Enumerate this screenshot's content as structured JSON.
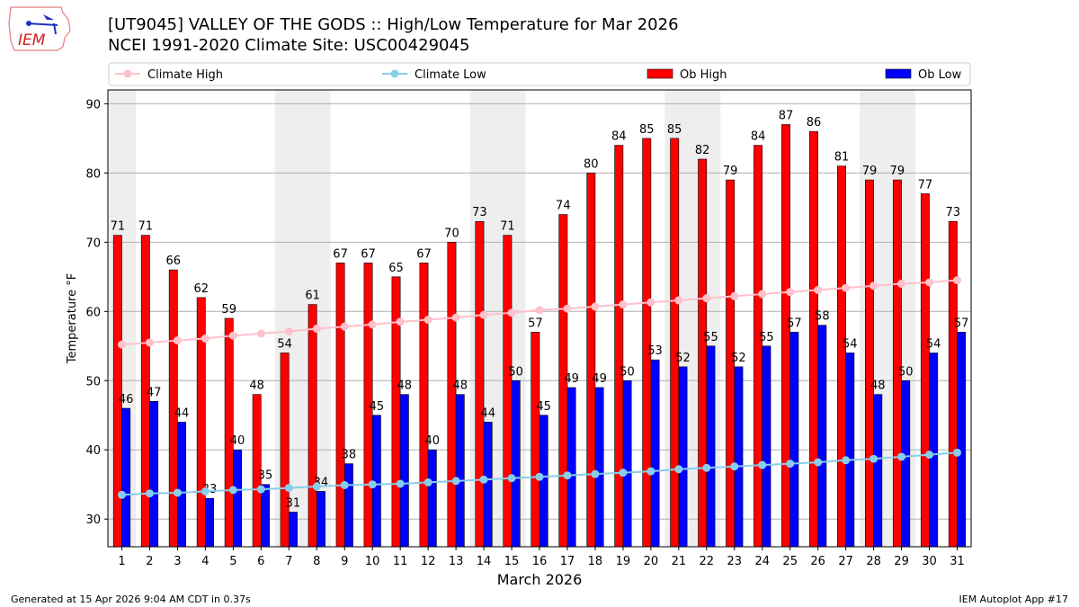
{
  "header": {
    "title_line1": "[UT9045] VALLEY OF THE GODS :: High/Low Temperature for Mar 2026",
    "title_line2": "NCEI 1991-2020 Climate Site: USC00429045",
    "logo_text": "IEM"
  },
  "footer": {
    "generated": "Generated at 15 Apr 2026 9:04 AM CDT in 0.37s",
    "app": "IEM Autoplot App #17"
  },
  "chart_data": {
    "type": "bar",
    "xlabel": "March 2026",
    "ylabel": "Temperature °F",
    "x": [
      1,
      2,
      3,
      4,
      5,
      6,
      7,
      8,
      9,
      10,
      11,
      12,
      13,
      14,
      15,
      16,
      17,
      18,
      19,
      20,
      21,
      22,
      23,
      24,
      25,
      26,
      27,
      28,
      29,
      30,
      31
    ],
    "xlim": [
      0.5,
      31.5
    ],
    "ylim": [
      26,
      92
    ],
    "yticks": [
      30,
      40,
      50,
      60,
      70,
      80,
      90
    ],
    "grid": "horizontal",
    "legend_placement": "top",
    "shaded_days": [
      1,
      7,
      8,
      14,
      15,
      21,
      22,
      28,
      29
    ],
    "series": [
      {
        "name": "Climate High",
        "type": "line",
        "color": "#ffc0cb",
        "values": [
          55.2,
          55.5,
          55.8,
          56.1,
          56.5,
          56.8,
          57.1,
          57.5,
          57.8,
          58.1,
          58.5,
          58.8,
          59.1,
          59.5,
          59.8,
          60.2,
          60.4,
          60.7,
          61.0,
          61.3,
          61.6,
          61.9,
          62.2,
          62.5,
          62.8,
          63.1,
          63.4,
          63.7,
          64.0,
          64.2,
          64.5
        ]
      },
      {
        "name": "Climate Low",
        "type": "line",
        "color": "#87ceeb",
        "values": [
          33.5,
          33.7,
          33.8,
          34.0,
          34.2,
          34.3,
          34.5,
          34.7,
          34.9,
          35.0,
          35.1,
          35.3,
          35.5,
          35.7,
          35.9,
          36.1,
          36.3,
          36.5,
          36.7,
          36.9,
          37.2,
          37.4,
          37.6,
          37.8,
          38.0,
          38.2,
          38.5,
          38.7,
          39.0,
          39.3,
          39.6
        ]
      },
      {
        "name": "Ob High",
        "type": "bar",
        "color": "#ff0000",
        "values": [
          71,
          71,
          66,
          62,
          59,
          48,
          54,
          61,
          67,
          67,
          65,
          67,
          70,
          73,
          71,
          57,
          74,
          80,
          84,
          85,
          85,
          82,
          79,
          84,
          87,
          86,
          81,
          79,
          79,
          77,
          73
        ]
      },
      {
        "name": "Ob Low",
        "type": "bar",
        "color": "#0000ff",
        "values": [
          46,
          47,
          44,
          33,
          40,
          35,
          31,
          34,
          38,
          45,
          48,
          40,
          48,
          44,
          50,
          45,
          49,
          49,
          50,
          53,
          52,
          55,
          52,
          55,
          57,
          58,
          54,
          48,
          50,
          54,
          57
        ]
      }
    ]
  }
}
